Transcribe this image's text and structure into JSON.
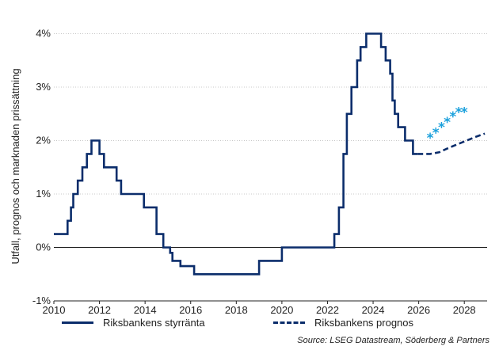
{
  "chart_data": {
    "type": "line",
    "ylabel": "Utfall, prognos och marknaden prissättning",
    "xlim": [
      2010,
      2029
    ],
    "ylim": [
      -1,
      4.2
    ],
    "x_ticks": [
      2010,
      2012,
      2014,
      2016,
      2018,
      2020,
      2022,
      2024,
      2026,
      2028
    ],
    "x_tick_labels": [
      "2010",
      "2012",
      "2014",
      "2016",
      "2018",
      "2020",
      "2022",
      "2024",
      "2026",
      "2028"
    ],
    "y_ticks": [
      -1,
      0,
      1,
      2,
      3,
      4
    ],
    "y_tick_labels": [
      "-1%",
      "0%",
      "1%",
      "2%",
      "3%",
      "4%"
    ],
    "grid": "horizontal-dotted",
    "zero_line": true,
    "series": [
      {
        "name": "Riksbankens styrränta",
        "style": "solid",
        "color": "#0b2d6b",
        "step": true,
        "points": [
          [
            2010.0,
            0.25
          ],
          [
            2010.5,
            0.25
          ],
          [
            2010.6,
            0.5
          ],
          [
            2010.75,
            0.75
          ],
          [
            2010.85,
            1.0
          ],
          [
            2011.05,
            1.25
          ],
          [
            2011.25,
            1.5
          ],
          [
            2011.45,
            1.75
          ],
          [
            2011.65,
            2.0
          ],
          [
            2012.0,
            1.75
          ],
          [
            2012.2,
            1.5
          ],
          [
            2012.75,
            1.25
          ],
          [
            2012.95,
            1.0
          ],
          [
            2013.95,
            0.75
          ],
          [
            2014.5,
            0.25
          ],
          [
            2014.8,
            0.0
          ],
          [
            2015.1,
            -0.1
          ],
          [
            2015.2,
            -0.25
          ],
          [
            2015.55,
            -0.35
          ],
          [
            2016.15,
            -0.5
          ],
          [
            2019.0,
            -0.25
          ],
          [
            2020.0,
            0.0
          ],
          [
            2022.3,
            0.25
          ],
          [
            2022.5,
            0.75
          ],
          [
            2022.7,
            1.75
          ],
          [
            2022.85,
            2.5
          ],
          [
            2023.05,
            3.0
          ],
          [
            2023.3,
            3.5
          ],
          [
            2023.45,
            3.75
          ],
          [
            2023.7,
            4.0
          ],
          [
            2024.35,
            3.75
          ],
          [
            2024.55,
            3.5
          ],
          [
            2024.75,
            3.25
          ],
          [
            2024.85,
            2.75
          ],
          [
            2024.95,
            2.5
          ],
          [
            2025.1,
            2.25
          ],
          [
            2025.4,
            2.0
          ],
          [
            2025.75,
            1.75
          ],
          [
            2025.95,
            1.75
          ]
        ]
      },
      {
        "name": "Riksbankens prognos",
        "style": "dashed",
        "color": "#0b2d6b",
        "step": false,
        "points": [
          [
            2025.95,
            1.75
          ],
          [
            2026.5,
            1.75
          ],
          [
            2026.9,
            1.78
          ],
          [
            2027.3,
            1.86
          ],
          [
            2027.7,
            1.93
          ],
          [
            2028.1,
            2.0
          ],
          [
            2028.5,
            2.07
          ],
          [
            2028.9,
            2.13
          ]
        ]
      },
      {
        "name": "",
        "style": "markers",
        "marker": "asterisk",
        "color": "#1aa0dc",
        "points": [
          [
            2026.5,
            2.05
          ],
          [
            2026.75,
            2.15
          ],
          [
            2027.0,
            2.25
          ],
          [
            2027.25,
            2.35
          ],
          [
            2027.5,
            2.45
          ],
          [
            2027.75,
            2.53
          ],
          [
            2028.0,
            2.53
          ]
        ]
      }
    ]
  },
  "legend": {
    "solid_label": "Riksbankens styrränta",
    "dashed_label": "Riksbankens prognos"
  },
  "source": "Source: LSEG Datastream, Söderberg & Partners"
}
